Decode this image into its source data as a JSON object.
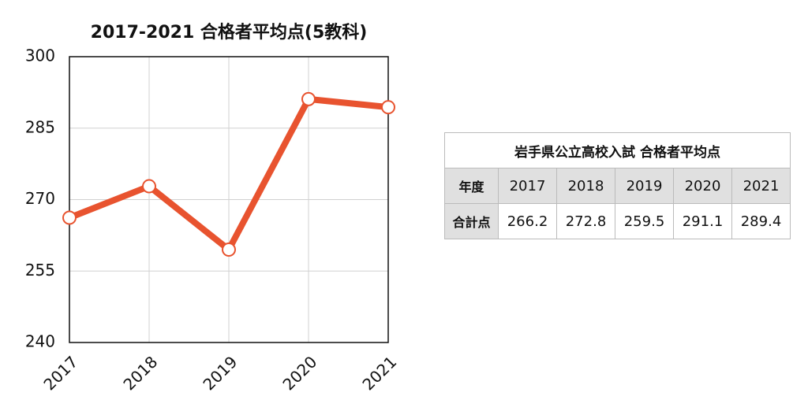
{
  "chart_data": {
    "type": "line",
    "title": "2017-2021 合格者平均点(5教科)",
    "categories": [
      "2017",
      "2018",
      "2019",
      "2020",
      "2021"
    ],
    "values": [
      266.2,
      272.8,
      259.5,
      291.1,
      289.4
    ],
    "color": "#e8532f",
    "ylim": [
      240,
      300
    ],
    "yticks": [
      240,
      255,
      270,
      285,
      300
    ],
    "grid": true
  },
  "table": {
    "title": "岩手県公立高校入試 合格者平均点",
    "rows": [
      [
        "年度",
        "2017",
        "2018",
        "2019",
        "2020",
        "2021"
      ],
      [
        "合計点",
        "266.2",
        "272.8",
        "259.5",
        "291.1",
        "289.4"
      ]
    ]
  }
}
